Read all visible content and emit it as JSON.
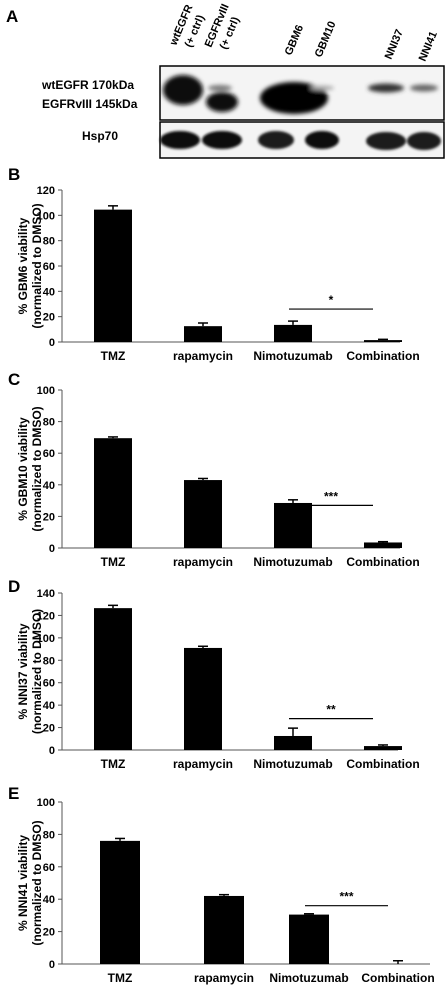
{
  "panel_a": {
    "label": "A",
    "lanes": [
      "wtEGFR",
      "(+ ctrl)",
      "EGFRvIII",
      "(+ ctrl)",
      "GBM6",
      "GBM10",
      "NNI37",
      "NNI41"
    ],
    "band_labels": [
      "wtEGFR 170kDa",
      "EGFRvIII 145kDa"
    ],
    "loading_label": "Hsp70"
  },
  "chart_data": [
    {
      "panel": "B",
      "type": "bar",
      "categories": [
        "TMZ",
        "rapamycin",
        "Nimotuzumab",
        "Combination"
      ],
      "values": [
        104.5,
        12.5,
        13.5,
        1.5
      ],
      "errors": [
        3,
        2.5,
        3,
        0.6
      ],
      "ylabel": [
        "% GBM6 viability",
        "(normalized to DMSO)"
      ],
      "ylim": [
        0,
        120
      ],
      "yticks": [
        0,
        20,
        40,
        60,
        80,
        100,
        120
      ],
      "significance": {
        "from": 2,
        "to": 3,
        "label": "*",
        "level": 26
      }
    },
    {
      "panel": "C",
      "type": "bar",
      "categories": [
        "TMZ",
        "rapamycin",
        "Nimotuzumab",
        "Combination"
      ],
      "values": [
        69.5,
        43,
        28.5,
        3.5
      ],
      "errors": [
        0.8,
        1,
        2,
        0.5
      ],
      "ylabel": [
        "% GBM10 viability",
        "(normalized to DMSO)"
      ],
      "ylim": [
        0,
        100
      ],
      "yticks": [
        0,
        20,
        40,
        60,
        80,
        100
      ],
      "significance": {
        "from": 2,
        "to": 3,
        "label": "***",
        "level": 27
      }
    },
    {
      "panel": "D",
      "type": "bar",
      "categories": [
        "TMZ",
        "rapamycin",
        "Nimotuzumab",
        "Combination"
      ],
      "values": [
        126.5,
        91,
        12.5,
        3.5
      ],
      "errors": [
        2.5,
        1.5,
        7,
        1
      ],
      "ylabel": [
        "% NNI37 viability",
        "(normalized to DMSO)"
      ],
      "ylim": [
        0,
        140
      ],
      "yticks": [
        0,
        20,
        40,
        60,
        80,
        100,
        120,
        140
      ],
      "significance": {
        "from": 2,
        "to": 3,
        "label": "**",
        "level": 28
      }
    },
    {
      "panel": "E",
      "type": "bar",
      "categories": [
        "TMZ",
        "rapamycin",
        "Nimotuzumab",
        "Combination"
      ],
      "values": [
        76,
        42,
        30.5,
        0
      ],
      "errors": [
        1.5,
        0.8,
        0.5,
        2
      ],
      "ylabel": [
        "% NNI41 viability",
        "(normalized to DMSO)"
      ],
      "ylim": [
        0,
        100
      ],
      "yticks": [
        0,
        20,
        40,
        60,
        80,
        100
      ],
      "significance": {
        "from": 2,
        "to": 3,
        "label": "***",
        "level": 36
      }
    }
  ]
}
